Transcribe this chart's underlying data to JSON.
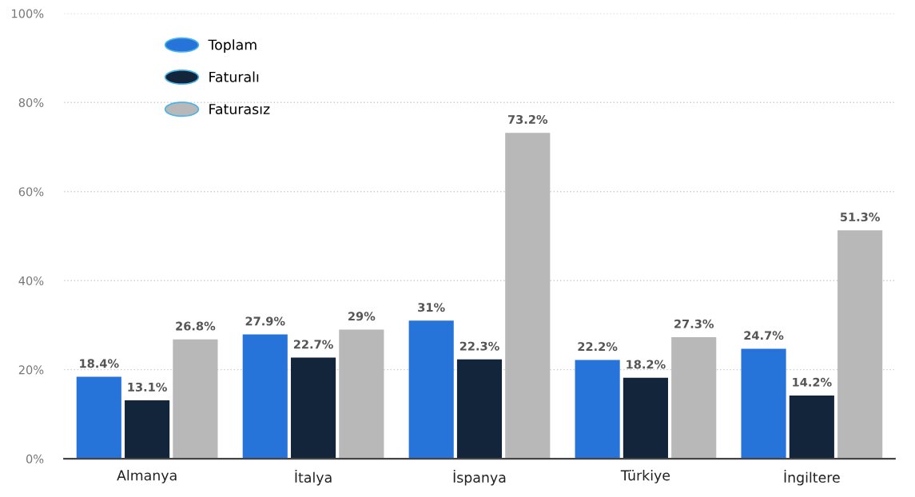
{
  "chart_data": {
    "type": "bar",
    "categories": [
      "Almanya",
      "İtalya",
      "İspanya",
      "Türkiye",
      "İngiltere"
    ],
    "series": [
      {
        "name": "Toplam",
        "color": "#2673da",
        "values": [
          18.4,
          27.9,
          31,
          22.2,
          24.7
        ],
        "value_labels": [
          "18.4%",
          "27.9%",
          "31%",
          "22.2%",
          "24.7%"
        ]
      },
      {
        "name": "Faturalı",
        "color": "#12253b",
        "values": [
          13.1,
          22.7,
          22.3,
          18.2,
          14.2
        ],
        "value_labels": [
          "13.1%",
          "22.7%",
          "22.3%",
          "18.2%",
          "14.2%"
        ]
      },
      {
        "name": "Faturasız",
        "color": "#b8b8b8",
        "values": [
          26.8,
          29,
          73.2,
          27.3,
          51.3
        ],
        "value_labels": [
          "26.8%",
          "29%",
          "73.2%",
          "27.3%",
          "51.3%"
        ]
      }
    ],
    "ylim": [
      0,
      100
    ],
    "yticks": [
      {
        "value": 0,
        "label": "0%"
      },
      {
        "value": 20,
        "label": "20%"
      },
      {
        "value": 40,
        "label": "40%"
      },
      {
        "value": 60,
        "label": "60%"
      },
      {
        "value": 80,
        "label": "80%"
      },
      {
        "value": 100,
        "label": "100%"
      }
    ],
    "grid": "y",
    "legend": "top left"
  }
}
